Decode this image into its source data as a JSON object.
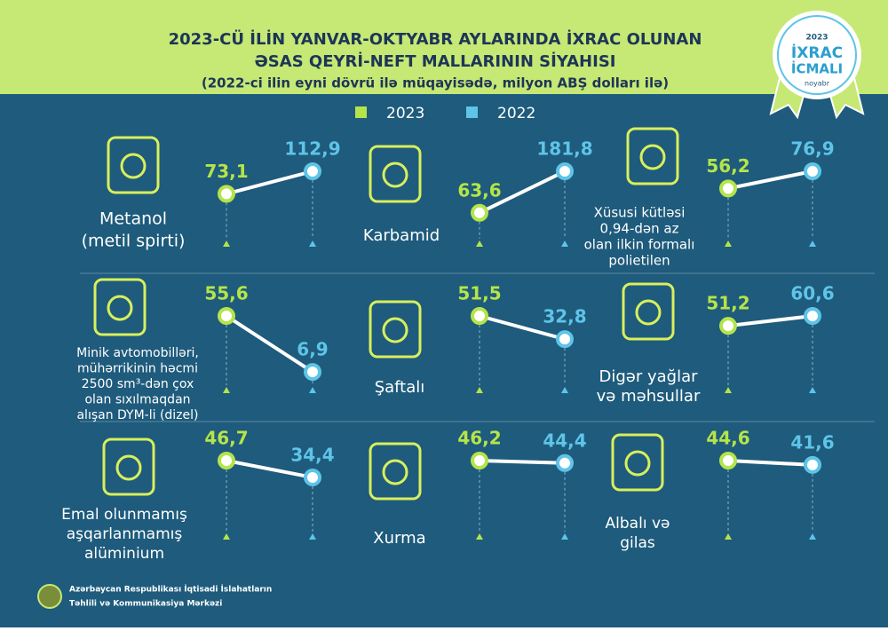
{
  "header": {
    "title_line1": "2023-CÜ İLİN YANVAR-OKTYABR AYLARINDA İXRAC OLUNAN",
    "title_line2": "ƏSAS QEYRİ-NEFT MALLARININ SİYAHISI",
    "subtitle": "(2022-ci ilin eyni dövrü ilə müqayisədə, milyon ABŞ dolları ilə)",
    "badge": {
      "year": "2023",
      "line1": "İXRAC",
      "line2": "İCMALI",
      "month": "noyabr"
    }
  },
  "legend": [
    {
      "label": "2023",
      "color": "#b5e44a"
    },
    {
      "label": "2022",
      "color": "#5ec4e8"
    }
  ],
  "items": [
    {
      "label": [
        "Metanol",
        "(metil spirti)"
      ],
      "v2023": {
        "value": 73.1,
        "label": "73,1"
      },
      "v2022": {
        "value": 112.9,
        "label": "112,9"
      }
    },
    {
      "label": [
        "Karbamid"
      ],
      "v2023": {
        "value": 63.6,
        "label": "63,6"
      },
      "v2022": {
        "value": 181.8,
        "label": "181,8"
      }
    },
    {
      "label": [
        "Xüsusi kütləsi",
        "0,94-dən az",
        "olan ilkin formalı",
        "polietilen"
      ],
      "v2023": {
        "value": 56.2,
        "label": "56,2"
      },
      "v2022": {
        "value": 76.9,
        "label": "76,9"
      }
    },
    {
      "label": [
        "Minik avtomobilləri,",
        "mühərrikinin həcmi",
        "2500 sm³-dən çox",
        "olan sıxılmaqdan",
        "alışan DYM-li (dizel)"
      ],
      "v2023": {
        "value": 55.6,
        "label": "55,6"
      },
      "v2022": {
        "value": 6.9,
        "label": "6,9"
      }
    },
    {
      "label": [
        "Şaftalı"
      ],
      "v2023": {
        "value": 51.5,
        "label": "51,5"
      },
      "v2022": {
        "value": 32.8,
        "label": "32,8"
      }
    },
    {
      "label": [
        "Digər yağlar",
        "və məhsullar"
      ],
      "v2023": {
        "value": 51.2,
        "label": "51,2"
      },
      "v2022": {
        "value": 60.6,
        "label": "60,6"
      }
    },
    {
      "label": [
        "Emal olunmamış",
        "aşqarlanmamış",
        "alüminium"
      ],
      "v2023": {
        "value": 46.7,
        "label": "46,7"
      },
      "v2022": {
        "value": 34.4,
        "label": "34,4"
      }
    },
    {
      "label": [
        "Xurma"
      ],
      "v2023": {
        "value": 46.2,
        "label": "46,2"
      },
      "v2022": {
        "value": 44.4,
        "label": "44,4"
      }
    },
    {
      "label": [
        "Albalı və",
        "gilas"
      ],
      "v2023": {
        "value": 44.6,
        "label": "44,6"
      },
      "v2022": {
        "value": 41.6,
        "label": "41,6"
      }
    }
  ],
  "footer": {
    "line1": "Azərbaycan Respublikası İqtisadi İslahatların",
    "line2": "Təhlili və Kommunikasiya Mərkəzi"
  }
}
